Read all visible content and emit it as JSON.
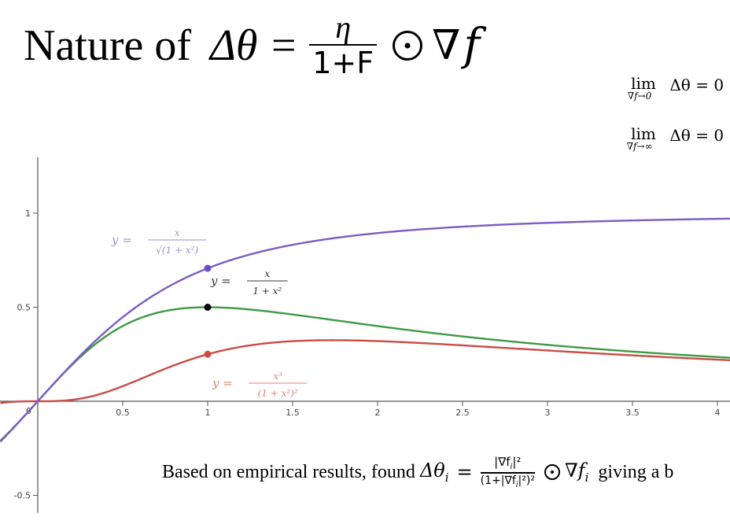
{
  "slide": {
    "title_prefix": "Nature of",
    "title_lhs": "Δθ =",
    "title_frac_num": "η",
    "title_frac_den": "1+F",
    "title_nabla": "∇",
    "title_f": "f"
  },
  "limits": [
    {
      "word": "lim",
      "sub": "∇f→0",
      "expr": "Δθ = 0"
    },
    {
      "word": "lim",
      "sub": "∇f→∞",
      "expr": "Δθ = 0"
    }
  ],
  "bottom_note": {
    "text_before": "Based on empirical results, found",
    "lhs": "Δθ",
    "lhs_sub": "i",
    "eq": "=",
    "frac_num": "|∇f",
    "frac_num_sub": "i",
    "frac_num_tail": "|²",
    "frac_den": "(1+|∇f",
    "frac_den_sub": "i",
    "frac_den_tail": "|²)²",
    "rhs": "∇f",
    "rhs_sub": "i",
    "text_after": "giving a b"
  },
  "chart_data": {
    "type": "line",
    "xlim": [
      -0.22,
      4.1
    ],
    "ylim": [
      -0.62,
      1.3
    ],
    "x_ticks": [
      0.5,
      1,
      1.5,
      2,
      2.5,
      3,
      3.5,
      4
    ],
    "x_tick_labels": [
      "0.5",
      "1",
      "1.5",
      "2",
      "2.5",
      "3",
      "3.5",
      "4"
    ],
    "y_ticks": [
      1,
      0.5,
      -0.5
    ],
    "y_tick_labels": [
      "1",
      "0.5",
      "-0.5"
    ],
    "origin_label": "0",
    "grid": false,
    "series": [
      {
        "formula": "x/sqrt(1+x^2)",
        "label_y": "y",
        "label_num": "x",
        "label_den": "√(1 + x²)",
        "color": "#7b5cc4",
        "marker": {
          "x": 1,
          "y": 0.707
        }
      },
      {
        "formula": "x/(1+x^2)",
        "label_y": "y",
        "label_num": "x",
        "label_den": "1 + x²",
        "color": "#3d9a46",
        "marker": {
          "x": 1,
          "y": 0.5
        }
      },
      {
        "formula": "x^3/(1+x^2)^2",
        "label_y": "y",
        "label_num": "x³",
        "label_den": "(1 + x²)²",
        "color": "#cc4b45",
        "marker": {
          "x": 1,
          "y": 0.25
        }
      }
    ],
    "marker_colors": [
      "#6b4fc0",
      "#000000",
      "#cc4b45"
    ]
  }
}
